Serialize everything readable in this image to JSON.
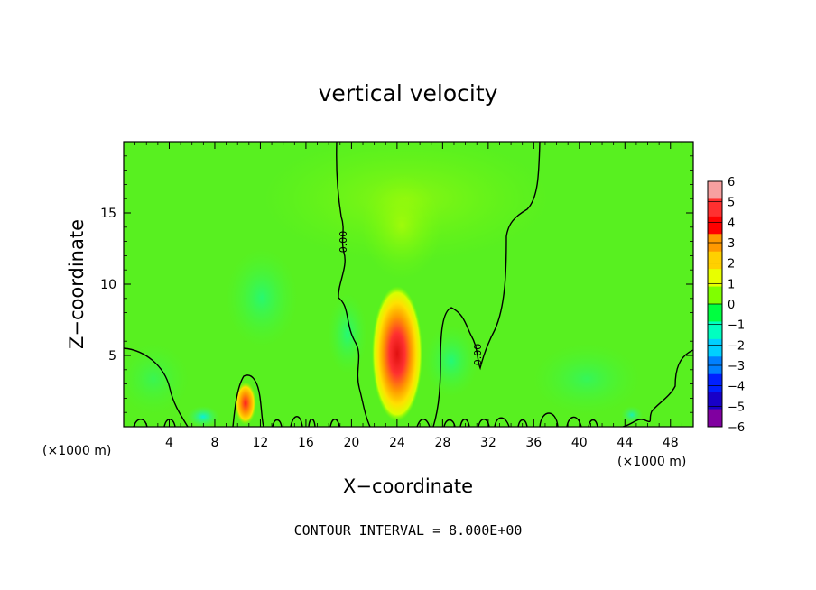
{
  "chart_data": {
    "type": "heatmap",
    "title": "vertical velocity",
    "xlabel": "X−coordinate",
    "ylabel": "Z−coordinate",
    "x_unit_left": "(×1000 m)",
    "x_unit_right": "(×1000 m)",
    "footnote": "CONTOUR INTERVAL = 8.000E+00",
    "xlim": [
      0,
      50
    ],
    "ylim": [
      0,
      20
    ],
    "x_ticks": [
      4,
      8,
      12,
      16,
      20,
      24,
      28,
      32,
      36,
      40,
      44,
      48
    ],
    "y_ticks": [
      5,
      10,
      15
    ],
    "contour_label": "0.00",
    "colorbar": {
      "levels": [
        6,
        5,
        4,
        3,
        2,
        1,
        0,
        -1,
        -2,
        -3,
        -4,
        -5,
        -6
      ],
      "level_labels": [
        "6",
        "5",
        "4",
        "3",
        "2",
        "1",
        "0",
        "−1",
        "−2",
        "−3",
        "−4",
        "−5",
        "−6"
      ],
      "colors": [
        "#f7a0a0",
        "#ff3030",
        "#ff0000",
        "#ff9900",
        "#ffd000",
        "#e8ff00",
        "#80ff00",
        "#00ff40",
        "#00ffc0",
        "#00d0ff",
        "#0080ff",
        "#0020ff",
        "#1800c8",
        "#8000a0"
      ]
    },
    "features": [
      {
        "kind": "updraft",
        "x": 24.3,
        "z": 5.5,
        "peak": 5.2
      },
      {
        "kind": "updraft",
        "x": 10.8,
        "z": 1.5,
        "peak": 4.0
      }
    ]
  }
}
